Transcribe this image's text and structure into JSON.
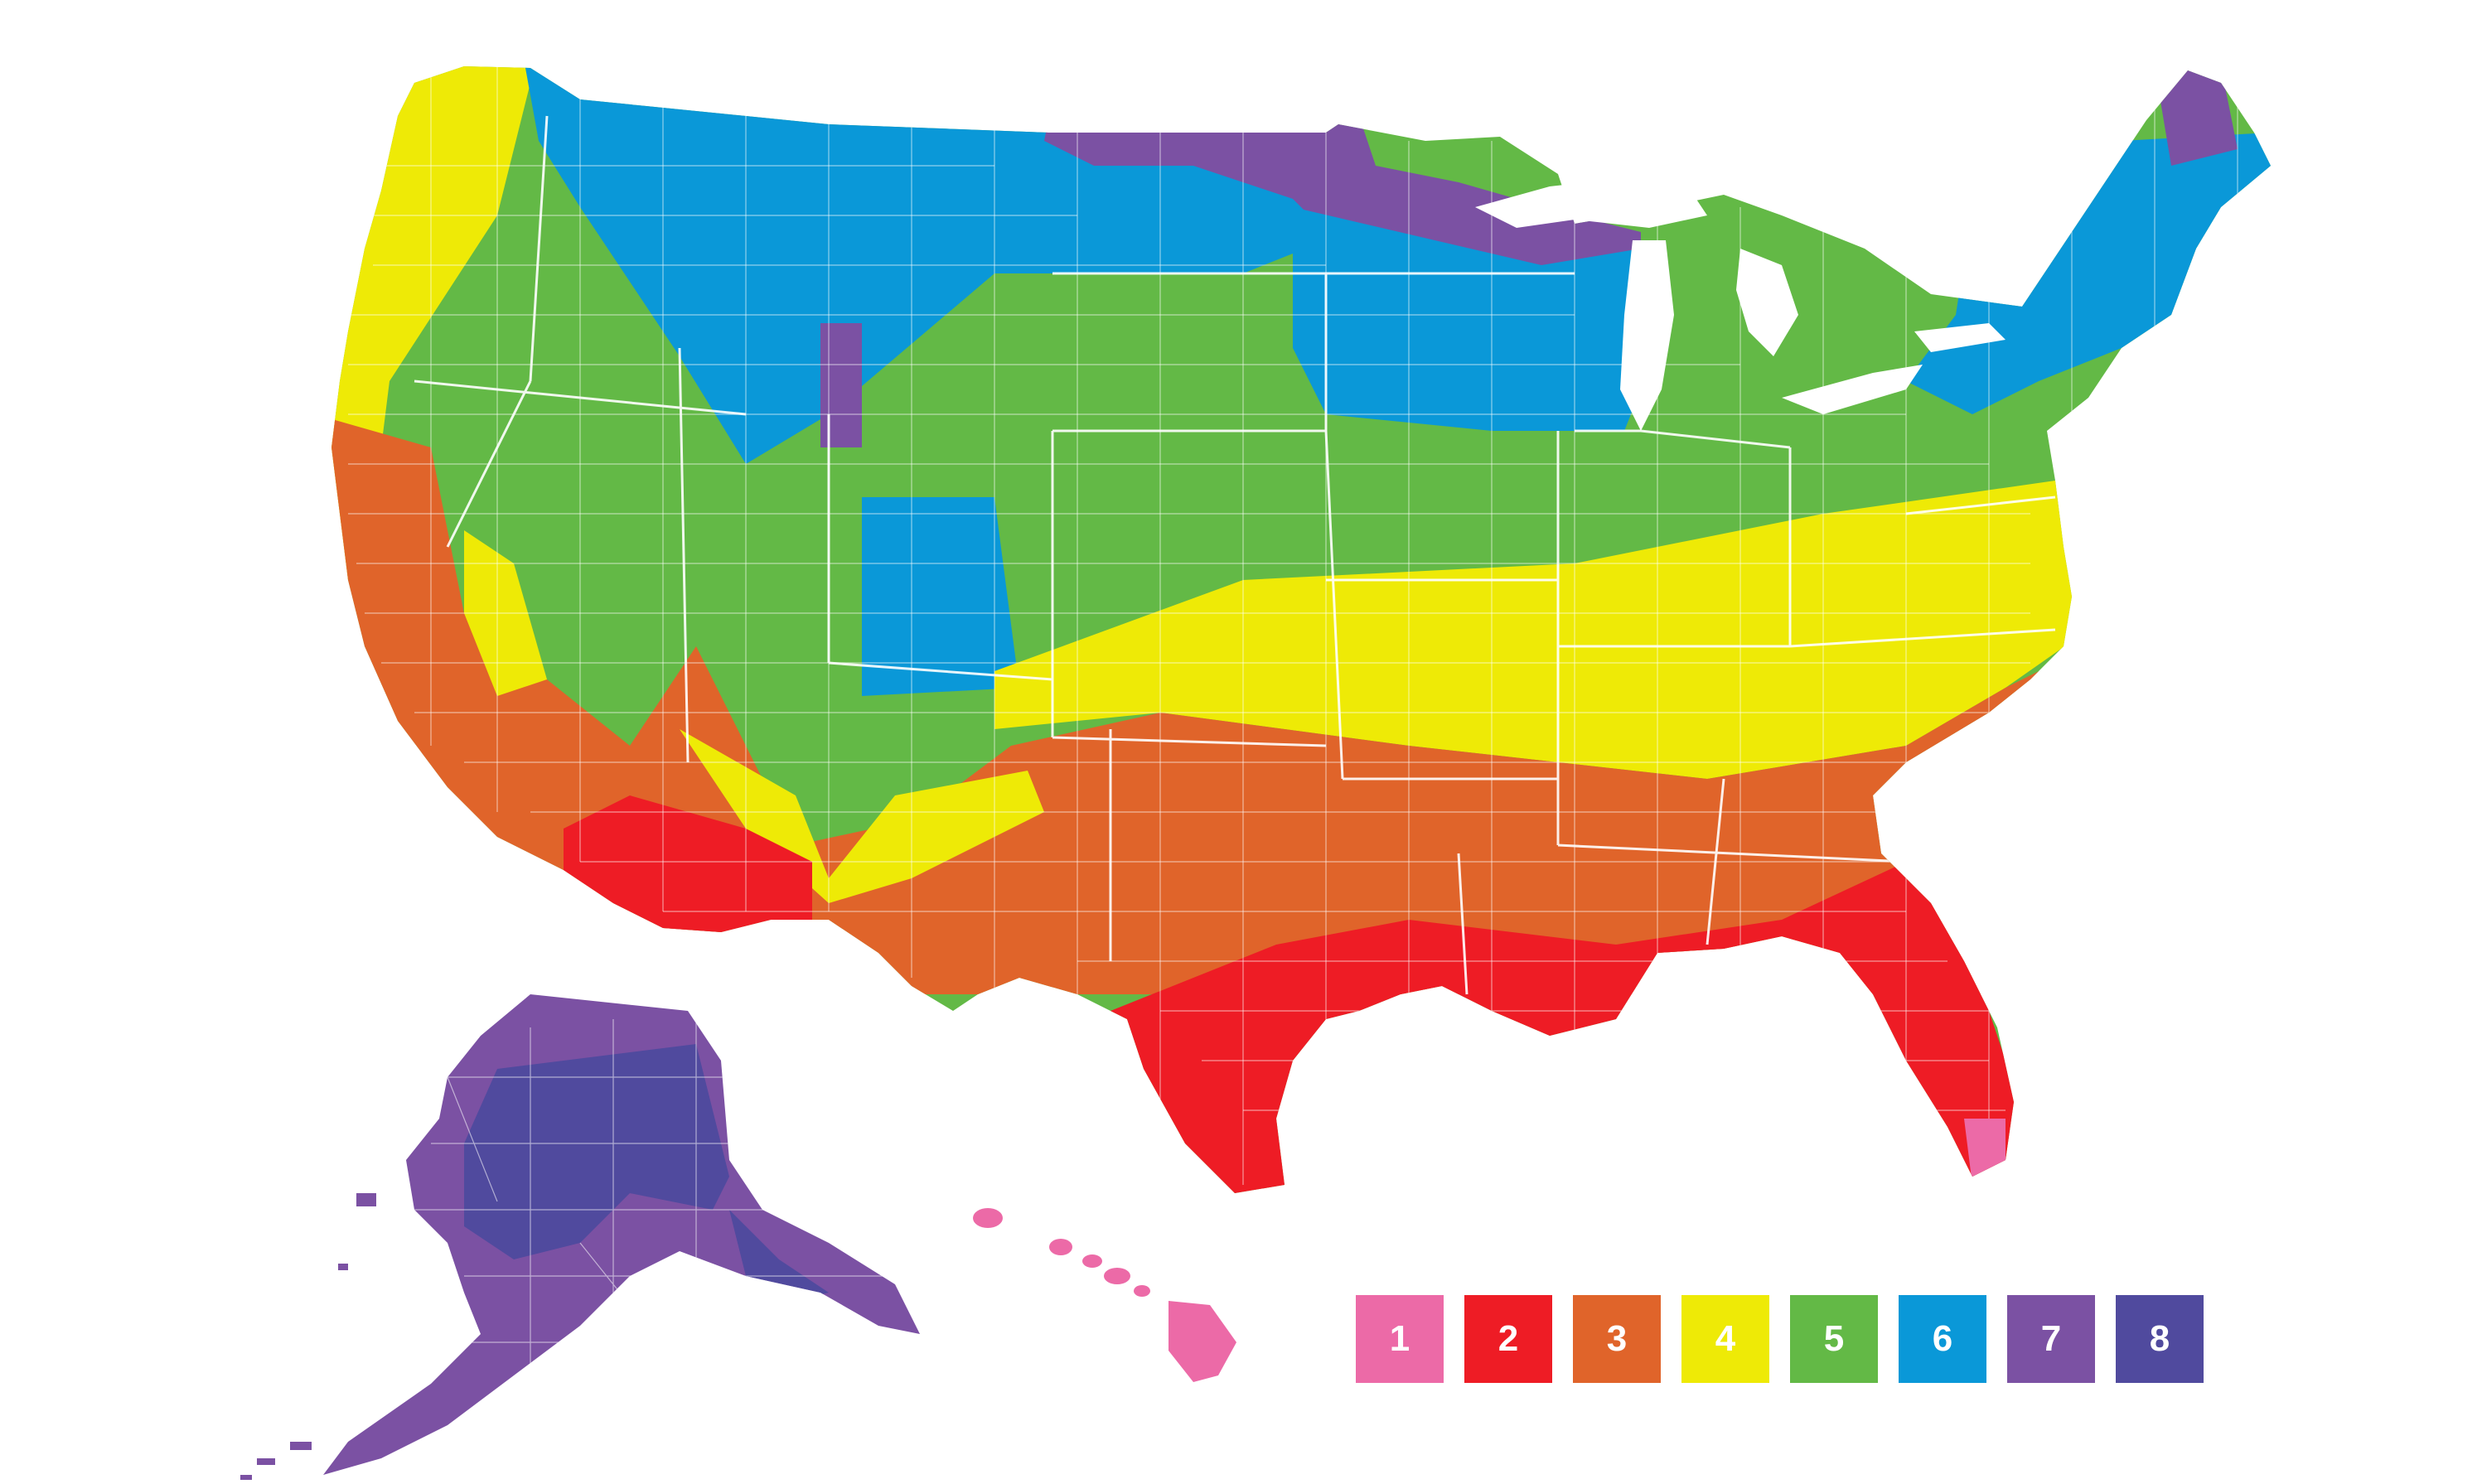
{
  "map": {
    "zone_colors": {
      "1": "#ec6aa7",
      "2": "#ee1c25",
      "3": "#e0642a",
      "4": "#eeea06",
      "5": "#63b946",
      "6": "#0a98d8",
      "7": "#7b51a3",
      "8": "#504a9e"
    }
  },
  "legend": {
    "items": [
      {
        "label": "1",
        "color": "#ec6aa7"
      },
      {
        "label": "2",
        "color": "#ee1c25"
      },
      {
        "label": "3",
        "color": "#e0642a"
      },
      {
        "label": "4",
        "color": "#eeea06"
      },
      {
        "label": "5",
        "color": "#63b946"
      },
      {
        "label": "6",
        "color": "#0a98d8"
      },
      {
        "label": "7",
        "color": "#7b51a3"
      },
      {
        "label": "8",
        "color": "#504a9e"
      }
    ]
  }
}
